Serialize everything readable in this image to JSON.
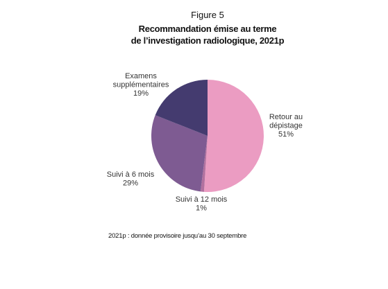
{
  "chart_data": {
    "type": "pie",
    "figure_label": "Figure 5",
    "title": [
      "Recommandation émise au terme",
      "de l’investigation radiologique, 2021p"
    ],
    "categories": [
      [
        "Retour au",
        "dépistage"
      ],
      [
        "Suivi à 12 mois"
      ],
      [
        "Suivi à 6 mois"
      ],
      [
        "Examens",
        "supplémentaires"
      ]
    ],
    "values": [
      51,
      1,
      29,
      19
    ],
    "value_labels": [
      "51%",
      "1%",
      "29%",
      "19%"
    ],
    "colors": [
      "#eb9cc2",
      "#b2719f",
      "#7e5b92",
      "#443b6f"
    ],
    "note": "2021p : donnée provisoire jusqu’au 30 septembre"
  }
}
